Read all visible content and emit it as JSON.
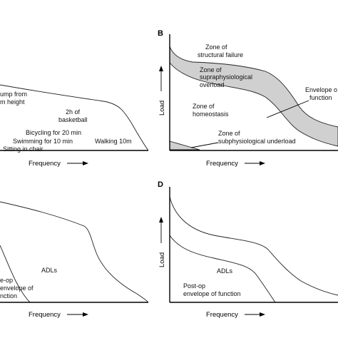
{
  "panels": {
    "A": {
      "letter": "",
      "x_axis_label": "Frequency",
      "activities": {
        "jump_line1": "ump from",
        "jump_line2": "m height",
        "basketball_line1": "2h of",
        "basketball_line2": "basketball",
        "bicycling": "Bicycling for 20 min",
        "swimming": "Swimming for 10 min",
        "sitting": "Sitting in chair",
        "walking": "Walking 10m"
      }
    },
    "B": {
      "letter": "B",
      "x_axis_label": "Frequency",
      "y_axis_label": "Load",
      "zones": {
        "structural_failure_line1": "Zone of",
        "structural_failure_line2": "structural failure",
        "supra_line1": "Zone of",
        "supra_line2": "supraphysiological",
        "supra_line3": "overload",
        "homeostasis_line1": "Zone of",
        "homeostasis_line2": "homeostasis",
        "sub_line1": "Zone of",
        "sub_line2": "subphysiological underload",
        "envelope_line1": "Envelope o",
        "envelope_line2": "function"
      },
      "band_color": "#d0d0d0"
    },
    "C": {
      "letter": "",
      "x_axis_label": "Frequency",
      "labels": {
        "adls": "ADLs",
        "postop_line1": "e-op",
        "postop_line2": "envelope of",
        "postop_line3": "nction"
      }
    },
    "D": {
      "letter": "D",
      "x_axis_label": "Frequency",
      "y_axis_label": "Load",
      "labels": {
        "adls": "ADLs",
        "postop_line1": "Post-op",
        "postop_line2": "envelope of function"
      }
    }
  }
}
